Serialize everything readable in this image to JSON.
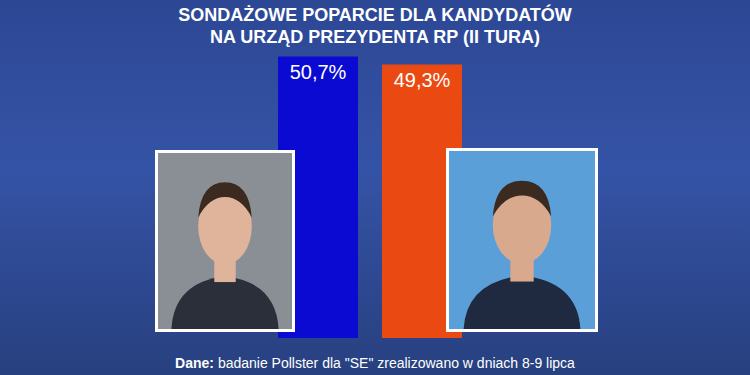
{
  "chart_data": {
    "type": "bar",
    "title": "SONDAŻOWE POPARCIE DLA KANDYDATÓW\nNA URZĄD PREZYDENTA RP (II TURA)",
    "categories": [
      null,
      null
    ],
    "values": [
      50.7,
      49.3
    ],
    "value_labels": [
      "50,7%",
      "49,3%"
    ],
    "colors": [
      "#0a0ad2",
      "#ea4a12"
    ],
    "data_labels": true,
    "tick_labels": false,
    "ylim": [
      0,
      60
    ],
    "source": {
      "label": "Dane:",
      "text": "badanie Pollster dla \"SE\" zrealizowano w dniach 8-9 lipca"
    }
  }
}
